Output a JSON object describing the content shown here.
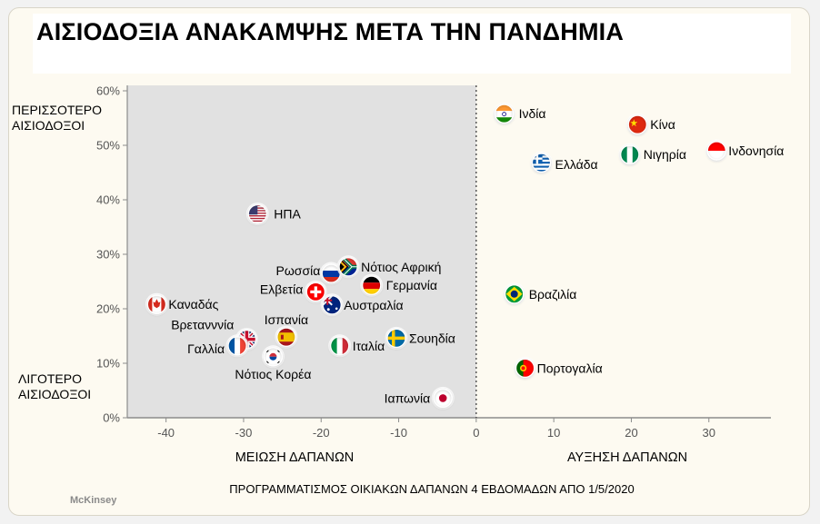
{
  "title": "ΑΙΣΙΟΔΟΞΙΑ ΑΝΑΚΑΜΨΗΣ ΜΕΤΑ ΤΗΝ ΠΑΝΔΗΜΙΑ",
  "side_labels": {
    "top": "ΠΕΡΙΣΣΟΤΕΡΟ\nΑΙΣΙΟΔΟΞΟΙ",
    "bottom": "ΛΙΓΟΤΕΡΟ\nΑΙΣΙΟΔΟΞΟΙ"
  },
  "source": "McKinsey",
  "chart_data": {
    "type": "scatter",
    "title": "ΑΙΣΙΟΔΟΞΙΑ ΑΝΑΚΑΜΨΗΣ ΜΕΤΑ ΤΗΝ ΠΑΝΔΗΜΙΑ",
    "xlabel": "ΠΡΟΓΡΑΜΜΑΤΙΣΜΟΣ ΟΙΚΙΑΚΩΝ ΔΑΠΑΝΩΝ 4 ΕΒΔΟΜΑΔΩΝ ΑΠΟ 1/5/2020",
    "x_left_label": "ΜΕΙΩΣΗ ΔΑΠΑΝΩΝ",
    "x_right_label": "ΑΥΞΗΣΗ ΔΑΠΑΝΩΝ",
    "xlim": [
      -45,
      38
    ],
    "ylim": [
      0,
      60
    ],
    "xticks": [
      "-40",
      "-30",
      "-20",
      "-10",
      "0",
      "10",
      "20",
      "30"
    ],
    "xtick_values": [
      -40,
      -30,
      -20,
      -10,
      0,
      10,
      20,
      30
    ],
    "yticks": [
      "0%",
      "10%",
      "20%",
      "30%",
      "40%",
      "50%",
      "60%"
    ],
    "ytick_values": [
      0,
      10,
      20,
      30,
      40,
      50,
      60
    ],
    "shaded_region": "x < 0",
    "shade_color": "#e1e1e1",
    "points": [
      {
        "label": "ΗΠΑ",
        "x": -28.2,
        "y": 37.4,
        "flag": "us-flag"
      },
      {
        "label": "Καναδάς",
        "x": -41.2,
        "y": 20.8,
        "flag": "canada-flag"
      },
      {
        "label": "Ρωσσία",
        "x": -18.7,
        "y": 26.5,
        "flag": "russia-flag"
      },
      {
        "label": "Νότιος Αφρική",
        "x": -16.5,
        "y": 27.7,
        "flag": "south-africa-flag"
      },
      {
        "label": "Ελβετία",
        "x": -20.7,
        "y": 23.1,
        "flag": "switzerland-flag"
      },
      {
        "label": "Γερμανία",
        "x": -13.5,
        "y": 24.3,
        "flag": "germany-flag"
      },
      {
        "label": "Αυστραλία",
        "x": -18.6,
        "y": 20.7,
        "flag": "australia-flag"
      },
      {
        "label": "Ισπανία",
        "x": -24.5,
        "y": 14.8,
        "flag": "spain-flag"
      },
      {
        "label": "Βρετανννία",
        "x": -29.6,
        "y": 14.4,
        "flag": "uk-flag"
      },
      {
        "label": "Γαλλία",
        "x": -30.8,
        "y": 13.2,
        "flag": "france-flag"
      },
      {
        "label": "Νότιος Κορέα",
        "x": -26.2,
        "y": 11.2,
        "flag": "south-korea-flag"
      },
      {
        "label": "Ιταλία",
        "x": -17.6,
        "y": 13.2,
        "flag": "italy-flag"
      },
      {
        "label": "Σουηδία",
        "x": -10.3,
        "y": 14.6,
        "flag": "sweden-flag"
      },
      {
        "label": "Ιαπωνία",
        "x": -4.3,
        "y": 3.6,
        "flag": "japan-flag"
      },
      {
        "label": "Ινδία",
        "x": 3.6,
        "y": 55.8,
        "flag": "india-flag"
      },
      {
        "label": "Κίνα",
        "x": 20.8,
        "y": 53.8,
        "flag": "china-flag"
      },
      {
        "label": "Ινδονησία",
        "x": 31.0,
        "y": 49.0,
        "flag": "indonesia-flag"
      },
      {
        "label": "Ελλάδα",
        "x": 8.4,
        "y": 46.8,
        "flag": "greece-flag"
      },
      {
        "label": "Νιγηρία",
        "x": 19.8,
        "y": 48.3,
        "flag": "nigeria-flag"
      },
      {
        "label": "Βραζιλία",
        "x": 4.9,
        "y": 22.7,
        "flag": "brazil-flag"
      },
      {
        "label": "Πορτογαλία",
        "x": 6.3,
        "y": 9.1,
        "flag": "portugal-flag"
      }
    ]
  }
}
